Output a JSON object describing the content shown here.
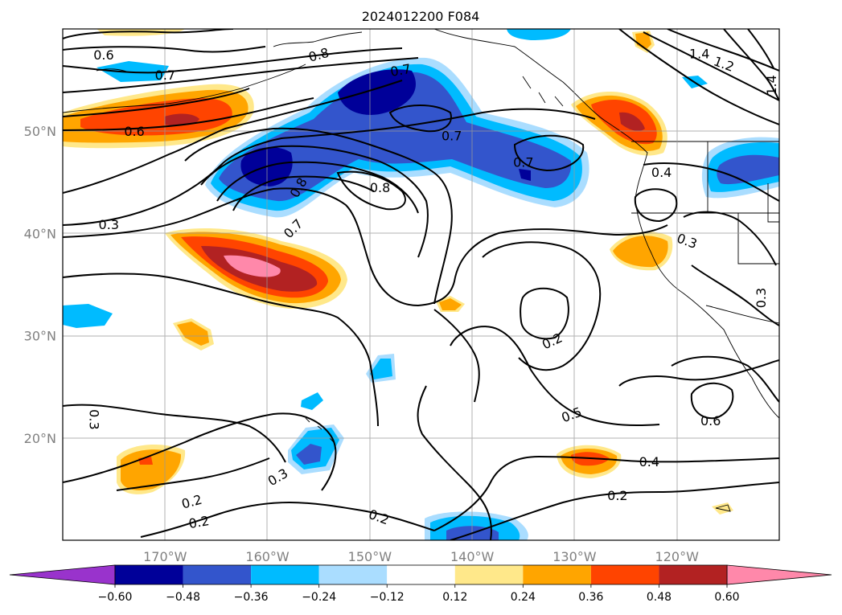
{
  "title": "2024012200 F084",
  "map": {
    "lon_range": [
      -180,
      -110
    ],
    "lat_range": [
      10,
      60
    ],
    "gridlines": true,
    "lon_ticks": [
      {
        "value": -170,
        "label": "170°W"
      },
      {
        "value": -160,
        "label": "160°W"
      },
      {
        "value": -150,
        "label": "150°W"
      },
      {
        "value": -140,
        "label": "140°W"
      },
      {
        "value": -130,
        "label": "130°W"
      },
      {
        "value": -120,
        "label": "120°W"
      }
    ],
    "lat_ticks": [
      {
        "value": 20,
        "label": "20°N"
      },
      {
        "value": 30,
        "label": "30°N"
      },
      {
        "value": 40,
        "label": "40°N"
      },
      {
        "value": 50,
        "label": "50°N"
      }
    ],
    "contour_labels": [
      {
        "text": "0.6",
        "lon": -176,
        "lat": 57.5,
        "rot": 0
      },
      {
        "text": "0.7",
        "lon": -170,
        "lat": 55.5,
        "rot": 0
      },
      {
        "text": "0.8",
        "lon": -155,
        "lat": 57.5,
        "rot": -15
      },
      {
        "text": "0.7",
        "lon": -147,
        "lat": 56,
        "rot": -10
      },
      {
        "text": "0.6",
        "lon": -173,
        "lat": 50,
        "rot": 0
      },
      {
        "text": "0.7",
        "lon": -142,
        "lat": 49.6,
        "rot": 0
      },
      {
        "text": "0.7",
        "lon": -135,
        "lat": 47,
        "rot": 0
      },
      {
        "text": "0.8",
        "lon": -157,
        "lat": 44.5,
        "rot": -60
      },
      {
        "text": "0.8",
        "lon": -149,
        "lat": 44.5,
        "rot": 0
      },
      {
        "text": "0.3",
        "lon": -175.5,
        "lat": 40.9,
        "rot": 0
      },
      {
        "text": "0.7",
        "lon": -157.5,
        "lat": 40.5,
        "rot": -45
      },
      {
        "text": "0.4",
        "lon": -121.5,
        "lat": 46,
        "rot": 0
      },
      {
        "text": "0.3",
        "lon": -119,
        "lat": 39.3,
        "rot": 20
      },
      {
        "text": "0.3",
        "lon": -111.8,
        "lat": 33.7,
        "rot": -90
      },
      {
        "text": "1.4",
        "lon": -117.8,
        "lat": 57.6,
        "rot": 0
      },
      {
        "text": "1.2",
        "lon": -115.4,
        "lat": 56.6,
        "rot": 20
      },
      {
        "text": "1.4",
        "lon": -110.8,
        "lat": 54.5,
        "rot": -90
      },
      {
        "text": "0.2",
        "lon": -132.2,
        "lat": 29.5,
        "rot": -25
      },
      {
        "text": "0.5",
        "lon": -130.3,
        "lat": 22.3,
        "rot": -20
      },
      {
        "text": "0.6",
        "lon": -116.7,
        "lat": 21.7,
        "rot": 0
      },
      {
        "text": "0.3",
        "lon": -176.9,
        "lat": 21.8,
        "rot": 90
      },
      {
        "text": "0.3",
        "lon": -159,
        "lat": 16.2,
        "rot": -30
      },
      {
        "text": "0.4",
        "lon": -122.7,
        "lat": 17.7,
        "rot": 0
      },
      {
        "text": "0.2",
        "lon": -167.4,
        "lat": 13.8,
        "rot": -15
      },
      {
        "text": "0.2",
        "lon": -166.7,
        "lat": 11.8,
        "rot": -10
      },
      {
        "text": "0.2",
        "lon": -149.1,
        "lat": 12.3,
        "rot": 20
      },
      {
        "text": "0.2",
        "lon": -125.8,
        "lat": 14.4,
        "rot": 0
      }
    ]
  },
  "colorbar": {
    "ticks": [
      "−0.60",
      "−0.48",
      "−0.36",
      "−0.24",
      "−0.12",
      "0.12",
      "0.24",
      "0.36",
      "0.48",
      "0.60"
    ],
    "levels": [
      -0.6,
      -0.48,
      -0.36,
      -0.24,
      -0.12,
      0.12,
      0.24,
      0.36,
      0.48,
      0.6
    ],
    "colors": [
      "#9933cc",
      "#000099",
      "#3355cc",
      "#00bbff",
      "#aaddff",
      "#ffffff",
      "#ffe88a",
      "#ffa500",
      "#ff4400",
      "#b22222",
      "#ff88aa"
    ]
  }
}
